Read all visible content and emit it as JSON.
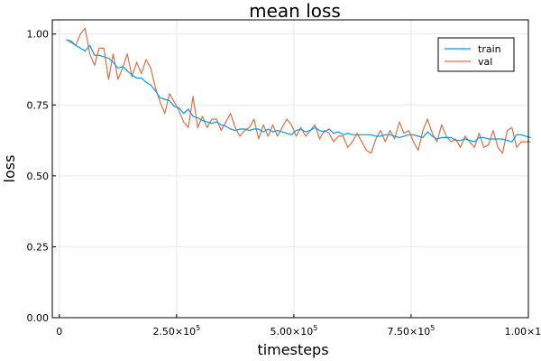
{
  "chart_data": {
    "type": "line",
    "title": "mean loss",
    "xlabel": "timesteps",
    "ylabel": "loss",
    "xlim": [
      -15000,
      1000000
    ],
    "ylim": [
      0.0,
      1.05
    ],
    "xticks": [
      {
        "value": 0,
        "label": "0",
        "sup": ""
      },
      {
        "value": 250000,
        "label": "2.50×10",
        "sup": "5"
      },
      {
        "value": 500000,
        "label": "5.00×10",
        "sup": "5"
      },
      {
        "value": 750000,
        "label": "7.50×10",
        "sup": "5"
      },
      {
        "value": 1000000,
        "label": "1.00×10",
        "sup": "6"
      }
    ],
    "yticks": [
      {
        "value": 0.0,
        "label": "0.00"
      },
      {
        "value": 0.25,
        "label": "0.25"
      },
      {
        "value": 0.5,
        "label": "0.50"
      },
      {
        "value": 0.75,
        "label": "0.75"
      },
      {
        "value": 1.0,
        "label": "1.00"
      }
    ],
    "grid": true,
    "legend_position": "top-right",
    "series": [
      {
        "name": "train",
        "color": "#009af9",
        "x": [
          15000,
          25000,
          35000,
          45000,
          55000,
          65000,
          75000,
          85000,
          95000,
          105000,
          115000,
          125000,
          135000,
          145000,
          155000,
          165000,
          175000,
          185000,
          195000,
          205000,
          215000,
          225000,
          235000,
          245000,
          255000,
          265000,
          275000,
          285000,
          295000,
          305000,
          315000,
          325000,
          335000,
          345000,
          355000,
          365000,
          375000,
          385000,
          395000,
          405000,
          415000,
          425000,
          435000,
          445000,
          455000,
          465000,
          475000,
          485000,
          495000,
          505000,
          515000,
          525000,
          535000,
          545000,
          555000,
          565000,
          575000,
          585000,
          595000,
          605000,
          615000,
          625000,
          635000,
          645000,
          655000,
          665000,
          675000,
          685000,
          695000,
          705000,
          715000,
          725000,
          735000,
          745000,
          755000,
          765000,
          775000,
          785000,
          795000,
          805000,
          815000,
          825000,
          835000,
          845000,
          855000,
          865000,
          875000,
          885000,
          895000,
          905000,
          915000,
          925000,
          935000,
          945000,
          955000,
          965000,
          975000,
          985000,
          995000,
          1005000
        ],
        "y": [
          0.98,
          0.975,
          0.96,
          0.95,
          0.94,
          0.96,
          0.925,
          0.925,
          0.92,
          0.915,
          0.9,
          0.88,
          0.885,
          0.87,
          0.855,
          0.845,
          0.845,
          0.83,
          0.82,
          0.8,
          0.775,
          0.77,
          0.765,
          0.745,
          0.74,
          0.72,
          0.735,
          0.71,
          0.705,
          0.695,
          0.69,
          0.685,
          0.69,
          0.68,
          0.675,
          0.665,
          0.66,
          0.665,
          0.665,
          0.66,
          0.665,
          0.665,
          0.655,
          0.665,
          0.655,
          0.66,
          0.655,
          0.65,
          0.645,
          0.66,
          0.665,
          0.655,
          0.66,
          0.67,
          0.66,
          0.655,
          0.665,
          0.65,
          0.655,
          0.645,
          0.65,
          0.645,
          0.645,
          0.645,
          0.645,
          0.645,
          0.64,
          0.64,
          0.645,
          0.645,
          0.64,
          0.635,
          0.64,
          0.645,
          0.645,
          0.64,
          0.635,
          0.655,
          0.64,
          0.63,
          0.635,
          0.635,
          0.635,
          0.625,
          0.625,
          0.63,
          0.625,
          0.62,
          0.635,
          0.635,
          0.63,
          0.63,
          0.63,
          0.63,
          0.625,
          0.62,
          0.645,
          0.645,
          0.64,
          0.635
        ]
      },
      {
        "name": "val",
        "color": "#e26f46",
        "x": [
          15000,
          25000,
          35000,
          45000,
          55000,
          65000,
          75000,
          85000,
          95000,
          105000,
          115000,
          125000,
          135000,
          145000,
          155000,
          165000,
          175000,
          185000,
          195000,
          205000,
          215000,
          225000,
          235000,
          245000,
          255000,
          265000,
          275000,
          285000,
          295000,
          305000,
          315000,
          325000,
          335000,
          345000,
          355000,
          365000,
          375000,
          385000,
          395000,
          405000,
          415000,
          425000,
          435000,
          445000,
          455000,
          465000,
          475000,
          485000,
          495000,
          505000,
          515000,
          525000,
          535000,
          545000,
          555000,
          565000,
          575000,
          585000,
          595000,
          605000,
          615000,
          625000,
          635000,
          645000,
          655000,
          665000,
          675000,
          685000,
          695000,
          705000,
          715000,
          725000,
          735000,
          745000,
          755000,
          765000,
          775000,
          785000,
          795000,
          805000,
          815000,
          825000,
          835000,
          845000,
          855000,
          865000,
          875000,
          885000,
          895000,
          905000,
          915000,
          925000,
          935000,
          945000,
          955000,
          965000,
          975000,
          985000,
          995000,
          1005000
        ],
        "y": [
          0.98,
          0.97,
          0.96,
          1.0,
          1.02,
          0.93,
          0.89,
          0.95,
          0.95,
          0.84,
          0.93,
          0.84,
          0.88,
          0.93,
          0.85,
          0.9,
          0.86,
          0.91,
          0.88,
          0.81,
          0.76,
          0.72,
          0.79,
          0.76,
          0.73,
          0.69,
          0.67,
          0.78,
          0.67,
          0.71,
          0.67,
          0.7,
          0.7,
          0.66,
          0.69,
          0.72,
          0.67,
          0.64,
          0.66,
          0.67,
          0.7,
          0.63,
          0.68,
          0.64,
          0.68,
          0.64,
          0.67,
          0.7,
          0.68,
          0.64,
          0.67,
          0.64,
          0.66,
          0.68,
          0.63,
          0.66,
          0.65,
          0.62,
          0.64,
          0.64,
          0.6,
          0.62,
          0.65,
          0.62,
          0.59,
          0.58,
          0.63,
          0.66,
          0.62,
          0.66,
          0.63,
          0.69,
          0.65,
          0.66,
          0.62,
          0.59,
          0.66,
          0.7,
          0.65,
          0.62,
          0.68,
          0.64,
          0.62,
          0.63,
          0.6,
          0.64,
          0.62,
          0.6,
          0.65,
          0.6,
          0.61,
          0.66,
          0.6,
          0.58,
          0.66,
          0.67,
          0.6,
          0.62,
          0.62,
          0.62
        ]
      }
    ]
  }
}
